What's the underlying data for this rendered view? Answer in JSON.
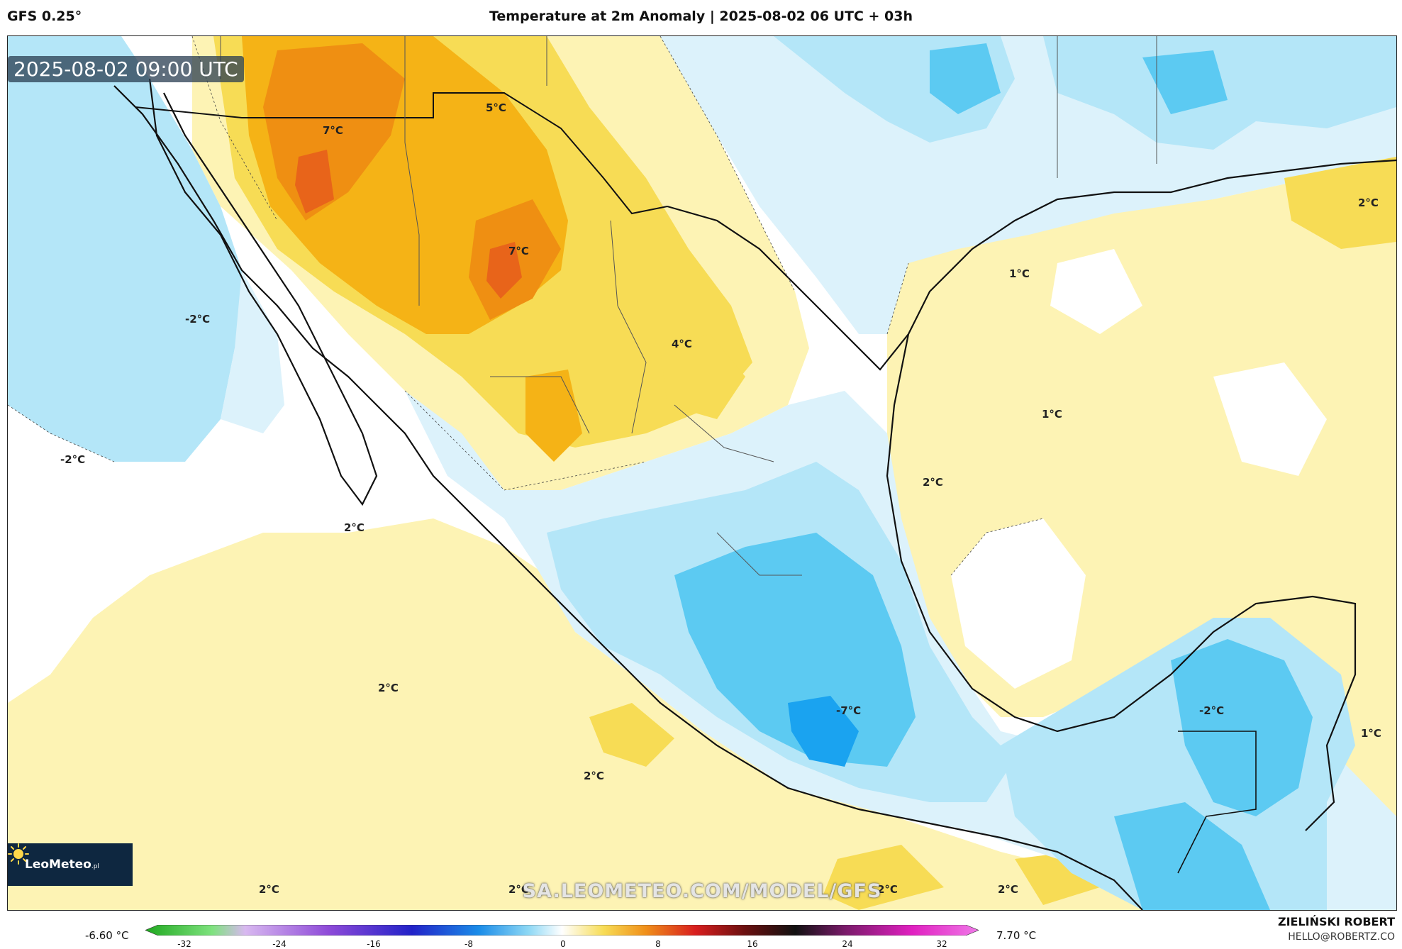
{
  "header": {
    "model": "GFS 0.25°",
    "title": "Temperature at 2m Anomaly | 2025-08-02 06 UTC + 03h"
  },
  "map": {
    "valid_time": "2025-08-02 09:00 UTC",
    "watermark": "SA.LEOMETEO.COM/MODEL/GFS",
    "logo": {
      "name": "LeoMeteo",
      "sub": ".pl"
    },
    "labels": {
      "l1": "5°C",
      "l2": "7°C",
      "l3": "7°C",
      "l4": "4°C",
      "l5": "1°C",
      "l6": "1°C",
      "l7": "2°C",
      "l8": "2°C",
      "l9": "-2°C",
      "l10": "-2°C",
      "l11": "2°C",
      "l12": "2°C",
      "l13": "-7°C",
      "l14": "2°C",
      "l15": "-2°C",
      "l16": "1°C",
      "l17": "2°C",
      "l18": "2°C",
      "l19": "2°C",
      "l20": "2°C"
    },
    "palette": {
      "cold_strong": "#1aa3f0",
      "cold": "#5ccaf2",
      "cool": "#b4e6f8",
      "cool_light": "#dcf2fb",
      "neutral": "#ffffff",
      "warm_light": "#fdf3b4",
      "warm": "#f7dc55",
      "hot": "#f5b316",
      "hotter": "#ef8f12",
      "hottest": "#e8641a"
    }
  },
  "colorbar": {
    "min_label": "-6.60 °C",
    "max_label": "7.70 °C",
    "ticks": [
      "-32",
      "-24",
      "-16",
      "-8",
      "0",
      "8",
      "16",
      "24",
      "32"
    ]
  },
  "credits": {
    "author": "ZIELIŃSKI ROBERT",
    "email": "HELLO@ROBERTZ.CO"
  }
}
